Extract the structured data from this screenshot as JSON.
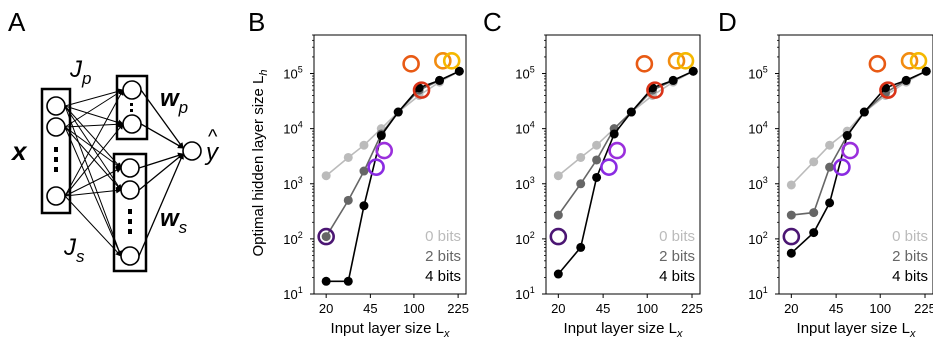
{
  "panels": {
    "a": {
      "label": "A"
    },
    "b": {
      "label": "B"
    },
    "c": {
      "label": "C"
    },
    "d": {
      "label": "D"
    }
  },
  "network": {
    "input_label": "x",
    "jp_label": "J",
    "jp_sub": "p",
    "js_label": "J",
    "js_sub": "s",
    "wp_label": "w",
    "wp_sub": "p",
    "ws_label": "w",
    "ws_sub": "s",
    "output_label": "y",
    "output_hat": "^"
  },
  "axes": {
    "ylabel": "Optimal hidden layer size L",
    "ylabel_sub": "h",
    "xlabel": "Input layer size L",
    "xlabel_sub": "x",
    "x_ticks": [
      "20",
      "45",
      "100",
      "225"
    ],
    "x_tick_values": [
      20,
      45,
      100,
      225
    ],
    "y_ticks": [
      "10",
      "10",
      "10",
      "10",
      "10"
    ],
    "y_tick_exponents": [
      "1",
      "2",
      "3",
      "4",
      "5"
    ],
    "y_tick_values": [
      10,
      100,
      1000,
      10000,
      100000
    ]
  },
  "chart_data": [
    {
      "panel": "B",
      "type": "line",
      "x_scale": "log",
      "y_scale": "log",
      "xlim": [
        16,
        260
      ],
      "ylim": [
        10,
        500000
      ],
      "xlabel": "Input layer size Lx",
      "ylabel": "Optimal hidden layer size Lh",
      "series": [
        {
          "name": "0 bits",
          "color": "#bbbbbb",
          "x": [
            20,
            30,
            40,
            55,
            75,
            110,
            160,
            230
          ],
          "y": [
            1400,
            3000,
            5000,
            10000,
            20000,
            40000,
            70000,
            110000
          ]
        },
        {
          "name": "2 bits",
          "color": "#666666",
          "x": [
            20,
            30,
            40,
            55,
            75,
            110,
            160,
            230
          ],
          "y": [
            110,
            500,
            1700,
            8000,
            20000,
            50000,
            75000,
            110000
          ]
        },
        {
          "name": "4 bits",
          "color": "#000000",
          "x": [
            20,
            30,
            40,
            55,
            75,
            110,
            160,
            230
          ],
          "y": [
            17,
            17,
            400,
            7500,
            20000,
            55000,
            75000,
            110000
          ]
        }
      ],
      "circles": [
        {
          "x": 20,
          "y": 110,
          "color": "#4b1673"
        },
        {
          "x": 50,
          "y": 2000,
          "color": "#8a2be2"
        },
        {
          "x": 58,
          "y": 4000,
          "color": "#9a2fdc"
        },
        {
          "x": 115,
          "y": 50000,
          "color": "#d93318"
        },
        {
          "x": 95,
          "y": 150000,
          "color": "#e85a14"
        },
        {
          "x": 170,
          "y": 170000,
          "color": "#f28c10"
        },
        {
          "x": 200,
          "y": 170000,
          "color": "#f5b800"
        }
      ]
    },
    {
      "panel": "C",
      "type": "line",
      "x_scale": "log",
      "y_scale": "log",
      "xlim": [
        16,
        260
      ],
      "ylim": [
        10,
        500000
      ],
      "xlabel": "Input layer size Lx",
      "ylabel": "",
      "series": [
        {
          "name": "0 bits",
          "color": "#bbbbbb",
          "x": [
            20,
            30,
            40,
            55,
            75,
            110,
            160,
            230
          ],
          "y": [
            1400,
            3000,
            5000,
            10000,
            20000,
            40000,
            70000,
            110000
          ]
        },
        {
          "name": "2 bits",
          "color": "#666666",
          "x": [
            20,
            30,
            40,
            55,
            75,
            110,
            160,
            230
          ],
          "y": [
            270,
            1000,
            2700,
            10000,
            20000,
            50000,
            75000,
            110000
          ]
        },
        {
          "name": "4 bits",
          "color": "#000000",
          "x": [
            20,
            30,
            40,
            55,
            75,
            110,
            160,
            230
          ],
          "y": [
            23,
            70,
            1300,
            8000,
            20000,
            55000,
            75000,
            110000
          ]
        }
      ],
      "circles": [
        {
          "x": 20,
          "y": 110,
          "color": "#4b1673"
        },
        {
          "x": 50,
          "y": 2000,
          "color": "#8a2be2"
        },
        {
          "x": 58,
          "y": 4000,
          "color": "#9a2fdc"
        },
        {
          "x": 115,
          "y": 50000,
          "color": "#d93318"
        },
        {
          "x": 95,
          "y": 150000,
          "color": "#e85a14"
        },
        {
          "x": 170,
          "y": 170000,
          "color": "#f28c10"
        },
        {
          "x": 200,
          "y": 170000,
          "color": "#f5b800"
        }
      ]
    },
    {
      "panel": "D",
      "type": "line",
      "x_scale": "log",
      "y_scale": "log",
      "xlim": [
        16,
        260
      ],
      "ylim": [
        10,
        500000
      ],
      "xlabel": "Input layer size Lx",
      "ylabel": "",
      "series": [
        {
          "name": "0 bits",
          "color": "#bbbbbb",
          "x": [
            20,
            30,
            40,
            55,
            75,
            110,
            160,
            230
          ],
          "y": [
            950,
            2500,
            5000,
            9000,
            20000,
            40000,
            70000,
            110000
          ]
        },
        {
          "name": "2 bits",
          "color": "#666666",
          "x": [
            20,
            30,
            40,
            55,
            75,
            110,
            160,
            230
          ],
          "y": [
            270,
            300,
            2000,
            7500,
            20000,
            45000,
            75000,
            110000
          ]
        },
        {
          "name": "4 bits",
          "color": "#000000",
          "x": [
            20,
            30,
            40,
            55,
            75,
            110,
            160,
            230
          ],
          "y": [
            55,
            130,
            450,
            7500,
            20000,
            55000,
            75000,
            110000
          ]
        }
      ],
      "circles": [
        {
          "x": 20,
          "y": 110,
          "color": "#4b1673"
        },
        {
          "x": 50,
          "y": 2000,
          "color": "#8a2be2"
        },
        {
          "x": 58,
          "y": 4000,
          "color": "#9a2fdc"
        },
        {
          "x": 115,
          "y": 50000,
          "color": "#d93318"
        },
        {
          "x": 95,
          "y": 150000,
          "color": "#e85a14"
        },
        {
          "x": 170,
          "y": 170000,
          "color": "#f28c10"
        },
        {
          "x": 200,
          "y": 170000,
          "color": "#f5b800"
        }
      ]
    }
  ]
}
